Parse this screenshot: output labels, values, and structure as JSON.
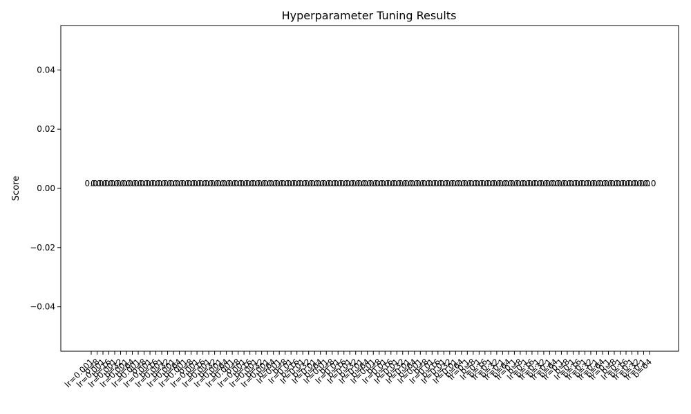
{
  "chart_data": {
    "type": "bar",
    "title": "Hyperparameter Tuning Results",
    "xlabel": "",
    "ylabel": "Score",
    "ylim": [
      -0.055,
      0.055
    ],
    "yticks": [
      -0.04,
      -0.02,
      0.0,
      0.02,
      0.04
    ],
    "ytick_labels": [
      "−0.04",
      "−0.02",
      "0.00",
      "0.02",
      "0.04"
    ],
    "grid": false,
    "legend": "none",
    "x_tick_rotation_deg": 45,
    "bar_label_text": "0.0",
    "categories": [
      "lr=0.001",
      "b=8",
      "lr=0.001",
      "b=16",
      "lr=0.001",
      "b=32",
      "lr=0.001",
      "b=64",
      "lr=0.001",
      "b=8",
      "lr=0.001",
      "b=16",
      "lr=0.001",
      "b=32",
      "lr=0.001",
      "b=64",
      "lr=0.001",
      "b=8",
      "lr=0.001",
      "b=16",
      "lr=0.001",
      "b=32",
      "lr=0.001",
      "b=64",
      "lr=0.001",
      "b=8",
      "lr=0.001",
      "b=16",
      "lr=0.001",
      "b=32",
      "lr=0.001",
      "b=64",
      "lr=0.01",
      "b=8",
      "lr=0.01",
      "b=16",
      "lr=0.01",
      "b=32",
      "lr=0.01",
      "b=64",
      "lr=0.01",
      "b=8",
      "lr=0.01",
      "b=16",
      "lr=0.01",
      "b=32",
      "lr=0.01",
      "b=64",
      "lr=0.01",
      "b=8",
      "lr=0.01",
      "b=16",
      "lr=0.01",
      "b=32",
      "lr=0.01",
      "b=64",
      "lr=0.01",
      "b=8",
      "lr=0.01",
      "b=16",
      "lr=0.01",
      "b=32",
      "lr=0.01",
      "b=64",
      "lr=0.1",
      "b=8",
      "lr=0.1",
      "b=16",
      "lr=0.1",
      "b=32",
      "lr=0.1",
      "b=64",
      "lr=0.1",
      "b=8",
      "lr=0.1",
      "b=16",
      "lr=0.1",
      "b=32",
      "lr=0.1",
      "b=64",
      "lr=0.1",
      "b=8",
      "lr=0.1",
      "b=16",
      "lr=0.1",
      "b=32",
      "lr=0.1",
      "b=64",
      "lr=0.1",
      "b=8",
      "lr=0.1",
      "b=16",
      "lr=0.1",
      "b=32",
      "lr=0.1",
      "b=64"
    ],
    "values": [
      0,
      0,
      0,
      0,
      0,
      0,
      0,
      0,
      0,
      0,
      0,
      0,
      0,
      0,
      0,
      0,
      0,
      0,
      0,
      0,
      0,
      0,
      0,
      0,
      0,
      0,
      0,
      0,
      0,
      0,
      0,
      0,
      0,
      0,
      0,
      0,
      0,
      0,
      0,
      0,
      0,
      0,
      0,
      0,
      0,
      0,
      0,
      0,
      0,
      0,
      0,
      0,
      0,
      0,
      0,
      0,
      0,
      0,
      0,
      0,
      0,
      0,
      0,
      0,
      0,
      0,
      0,
      0,
      0,
      0,
      0,
      0,
      0,
      0,
      0,
      0,
      0,
      0,
      0,
      0,
      0,
      0,
      0,
      0,
      0,
      0,
      0,
      0,
      0,
      0,
      0,
      0,
      0,
      0,
      0,
      0
    ]
  }
}
